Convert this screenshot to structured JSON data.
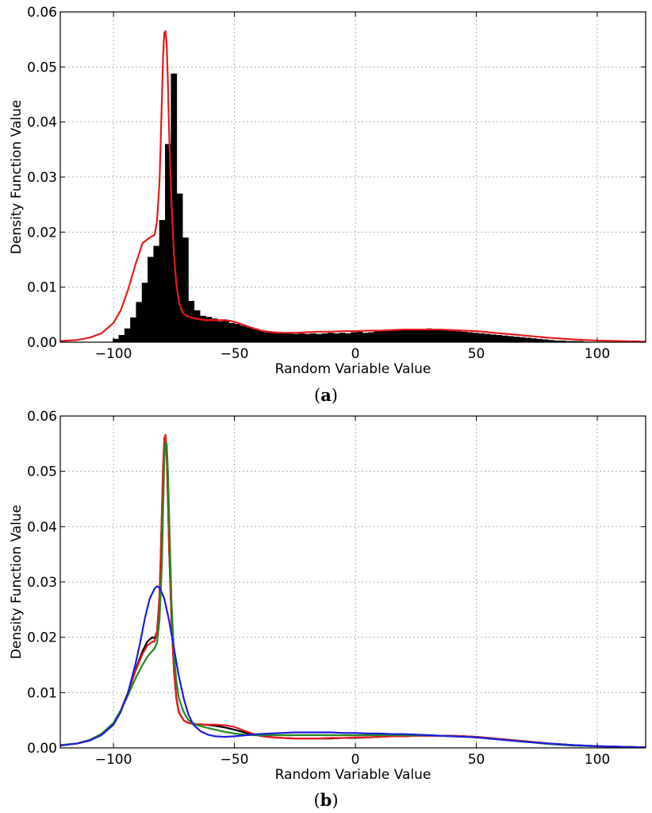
{
  "chart_data": [
    {
      "type": "bar",
      "panel_label": "a",
      "xlabel": "Random Variable Value",
      "ylabel": "Density Function Value",
      "xlim": [
        -122,
        120
      ],
      "ylim": [
        0,
        0.06
      ],
      "xticks": [
        -100,
        -50,
        0,
        50,
        100
      ],
      "xtick_labels": [
        "−100",
        "−50",
        "0",
        "50",
        "100"
      ],
      "yticks": [
        0,
        0.01,
        0.02,
        0.03,
        0.04,
        0.05,
        0.06
      ],
      "ytick_labels": [
        "0.00",
        "0.01",
        "0.02",
        "0.03",
        "0.04",
        "0.05",
        "0.06"
      ],
      "grid": true,
      "histogram": {
        "bin_width": 2.42,
        "color": "#000000",
        "bins": [
          [
            -100.3,
            0.0006
          ],
          [
            -97.9,
            0.0013
          ],
          [
            -95.5,
            0.0025
          ],
          [
            -93.1,
            0.0045
          ],
          [
            -90.7,
            0.0073
          ],
          [
            -88.3,
            0.0108
          ],
          [
            -85.9,
            0.0155
          ],
          [
            -83.5,
            0.0175
          ],
          [
            -81.1,
            0.0222
          ],
          [
            -78.7,
            0.036
          ],
          [
            -76.3,
            0.0488
          ],
          [
            -73.9,
            0.027
          ],
          [
            -71.5,
            0.019
          ],
          [
            -69.1,
            0.0075
          ],
          [
            -66.7,
            0.0058
          ],
          [
            -64.3,
            0.0048
          ],
          [
            -61.9,
            0.0046
          ],
          [
            -59.5,
            0.0043
          ],
          [
            -57.1,
            0.0038
          ],
          [
            -54.7,
            0.004
          ],
          [
            -52.3,
            0.0035
          ],
          [
            -49.9,
            0.0033
          ],
          [
            -47.5,
            0.003
          ],
          [
            -45.1,
            0.0027
          ],
          [
            -42.7,
            0.0025
          ],
          [
            -40.3,
            0.0022
          ],
          [
            -37.9,
            0.002
          ],
          [
            -35.5,
            0.0019
          ],
          [
            -33.1,
            0.0018
          ],
          [
            -30.7,
            0.0017
          ],
          [
            -28.3,
            0.0016
          ],
          [
            -25.9,
            0.0015
          ],
          [
            -23.5,
            0.0016
          ],
          [
            -21.1,
            0.0015
          ],
          [
            -18.7,
            0.0016
          ],
          [
            -16.3,
            0.0015
          ],
          [
            -13.9,
            0.0016
          ],
          [
            -11.5,
            0.0017
          ],
          [
            -9.1,
            0.0016
          ],
          [
            -6.7,
            0.0017
          ],
          [
            -4.3,
            0.0016
          ],
          [
            -1.9,
            0.0018
          ],
          [
            0.5,
            0.0019
          ],
          [
            2.9,
            0.0017
          ],
          [
            5.3,
            0.0018
          ],
          [
            7.7,
            0.002
          ],
          [
            10.1,
            0.0021
          ],
          [
            12.5,
            0.0022
          ],
          [
            14.9,
            0.0021
          ],
          [
            17.3,
            0.0023
          ],
          [
            19.7,
            0.0024
          ],
          [
            22.1,
            0.0023
          ],
          [
            24.5,
            0.0024
          ],
          [
            26.9,
            0.0023
          ],
          [
            29.3,
            0.0025
          ],
          [
            31.7,
            0.0024
          ],
          [
            34.1,
            0.0023
          ],
          [
            36.5,
            0.0022
          ],
          [
            38.9,
            0.0021
          ],
          [
            41.3,
            0.002
          ],
          [
            43.7,
            0.0019
          ],
          [
            46.1,
            0.0018
          ],
          [
            48.5,
            0.0017
          ],
          [
            50.9,
            0.0016
          ],
          [
            53.3,
            0.0015
          ],
          [
            55.7,
            0.0014
          ],
          [
            58.1,
            0.0013
          ],
          [
            60.5,
            0.0012
          ],
          [
            62.9,
            0.0011
          ],
          [
            65.3,
            0.001
          ],
          [
            67.7,
            0.0009
          ],
          [
            70.1,
            0.0008
          ],
          [
            72.5,
            0.0007
          ],
          [
            74.9,
            0.0006
          ],
          [
            77.3,
            0.0005
          ],
          [
            79.7,
            0.0004
          ],
          [
            82.1,
            0.0003
          ],
          [
            84.5,
            0.0003
          ],
          [
            86.9,
            0.0002
          ],
          [
            89.3,
            0.0002
          ],
          [
            91.7,
            0.0002
          ],
          [
            94.1,
            0.0001
          ]
        ]
      },
      "series": [
        {
          "color": "#e8191c",
          "x": [
            -122,
            -115,
            -110,
            -105,
            -100,
            -97,
            -94,
            -91,
            -88,
            -85,
            -83,
            -82,
            -81,
            -80.5,
            -80,
            -79.5,
            -79,
            -78.5,
            -78,
            -77.5,
            -77,
            -76,
            -75,
            -74,
            -73,
            -72,
            -71,
            -70,
            -68,
            -65,
            -62,
            -58,
            -54,
            -52,
            -50,
            -46,
            -42,
            -38,
            -34,
            -30,
            -25,
            -20,
            -15,
            -10,
            -5,
            0,
            5,
            10,
            15,
            20,
            25,
            30,
            35,
            40,
            45,
            50,
            55,
            60,
            70,
            80,
            90,
            100,
            110,
            120
          ],
          "y": [
            0.0002,
            0.0004,
            0.0008,
            0.0016,
            0.0035,
            0.0058,
            0.0095,
            0.014,
            0.018,
            0.019,
            0.0195,
            0.022,
            0.029,
            0.036,
            0.044,
            0.052,
            0.0562,
            0.0565,
            0.054,
            0.047,
            0.038,
            0.025,
            0.016,
            0.0105,
            0.0075,
            0.006,
            0.0052,
            0.0048,
            0.0045,
            0.0042,
            0.004,
            0.004,
            0.004,
            0.0039,
            0.0037,
            0.0031,
            0.0025,
            0.002,
            0.0018,
            0.0017,
            0.0017,
            0.0018,
            0.0019,
            0.0019,
            0.002,
            0.002,
            0.0021,
            0.0021,
            0.0022,
            0.0023,
            0.0023,
            0.0023,
            0.0023,
            0.0022,
            0.0021,
            0.002,
            0.0018,
            0.0016,
            0.0012,
            0.0008,
            0.0005,
            0.0003,
            0.0002,
            0.0001
          ]
        }
      ]
    },
    {
      "type": "line",
      "panel_label": "b",
      "xlabel": "Random Variable Value",
      "ylabel": "Density Function Value",
      "xlim": [
        -122,
        120
      ],
      "ylim": [
        0,
        0.06
      ],
      "xticks": [
        -100,
        -50,
        0,
        50,
        100
      ],
      "xtick_labels": [
        "−100",
        "−50",
        "0",
        "50",
        "100"
      ],
      "yticks": [
        0,
        0.01,
        0.02,
        0.03,
        0.04,
        0.05,
        0.06
      ],
      "ytick_labels": [
        "0.00",
        "0.01",
        "0.02",
        "0.03",
        "0.04",
        "0.05",
        "0.06"
      ],
      "grid": true,
      "series": [
        {
          "color": "#000000",
          "x": [
            -122,
            -115,
            -110,
            -105,
            -100,
            -97,
            -94,
            -91,
            -88,
            -86,
            -84,
            -83,
            -82,
            -81,
            -80.5,
            -80,
            -79.5,
            -79,
            -78.5,
            -78,
            -77.5,
            -77,
            -76,
            -75,
            -74,
            -73,
            -71,
            -69,
            -66,
            -62,
            -58,
            -54,
            -50,
            -46,
            -42,
            -38,
            -34,
            -30,
            -25,
            -20,
            -15,
            -10,
            -5,
            0,
            5,
            10,
            15,
            20,
            25,
            30,
            35,
            40,
            45,
            50,
            55,
            60,
            70,
            80,
            90,
            100,
            110,
            120
          ],
          "y": [
            0.0005,
            0.0008,
            0.0014,
            0.0025,
            0.0045,
            0.0068,
            0.01,
            0.014,
            0.0175,
            0.0192,
            0.02,
            0.0198,
            0.021,
            0.027,
            0.034,
            0.042,
            0.05,
            0.0552,
            0.056,
            0.053,
            0.045,
            0.036,
            0.023,
            0.014,
            0.009,
            0.0065,
            0.005,
            0.0045,
            0.0043,
            0.0042,
            0.004,
            0.0037,
            0.0033,
            0.0028,
            0.0024,
            0.0021,
            0.0019,
            0.0018,
            0.0017,
            0.0017,
            0.0017,
            0.0017,
            0.0018,
            0.0018,
            0.0019,
            0.002,
            0.0021,
            0.0021,
            0.0022,
            0.0022,
            0.0022,
            0.0022,
            0.0021,
            0.002,
            0.0018,
            0.0016,
            0.0012,
            0.0008,
            0.0005,
            0.0003,
            0.0002,
            0.0001
          ]
        },
        {
          "color": "#e8191c",
          "x": [
            -122,
            -115,
            -110,
            -105,
            -100,
            -97,
            -94,
            -91,
            -88,
            -86,
            -84,
            -83,
            -82,
            -81,
            -80.5,
            -80,
            -79.5,
            -79,
            -78.5,
            -78,
            -77.5,
            -77,
            -76,
            -75,
            -74,
            -73,
            -71,
            -69,
            -66,
            -62,
            -58,
            -54,
            -50,
            -46,
            -42,
            -38,
            -34,
            -30,
            -25,
            -20,
            -15,
            -10,
            -5,
            0,
            5,
            10,
            15,
            20,
            25,
            30,
            35,
            40,
            45,
            50,
            55,
            60,
            70,
            80,
            90,
            100,
            110,
            120
          ],
          "y": [
            0.0005,
            0.0008,
            0.0014,
            0.0025,
            0.0045,
            0.0068,
            0.01,
            0.0138,
            0.017,
            0.0185,
            0.0192,
            0.0192,
            0.021,
            0.0275,
            0.0345,
            0.043,
            0.051,
            0.056,
            0.0566,
            0.0535,
            0.0455,
            0.036,
            0.023,
            0.0138,
            0.0088,
            0.0064,
            0.005,
            0.0045,
            0.0043,
            0.0042,
            0.0042,
            0.0041,
            0.0038,
            0.0031,
            0.0025,
            0.0021,
            0.0019,
            0.0018,
            0.0017,
            0.0017,
            0.0017,
            0.0018,
            0.0018,
            0.0019,
            0.0019,
            0.002,
            0.0021,
            0.0021,
            0.0022,
            0.0022,
            0.0022,
            0.0022,
            0.0021,
            0.002,
            0.0018,
            0.0016,
            0.0012,
            0.0008,
            0.0005,
            0.0003,
            0.0002,
            0.0001
          ]
        },
        {
          "color": "#1f8a1f",
          "x": [
            -122,
            -115,
            -110,
            -105,
            -100,
            -97,
            -94,
            -91,
            -88,
            -86,
            -84,
            -83,
            -82,
            -81,
            -80,
            -79.5,
            -79,
            -78.5,
            -78,
            -77.5,
            -77,
            -76.5,
            -76,
            -75,
            -74,
            -73,
            -71,
            -69,
            -66,
            -62,
            -58,
            -54,
            -50,
            -46,
            -42,
            -38,
            -34,
            -30,
            -25,
            -20,
            -15,
            -10,
            -5,
            0,
            5,
            10,
            15,
            20,
            25,
            30,
            35,
            40,
            45,
            50,
            55,
            60,
            70,
            80,
            90,
            100,
            110,
            120
          ],
          "y": [
            0.0005,
            0.0008,
            0.0014,
            0.0025,
            0.0045,
            0.0068,
            0.0095,
            0.0125,
            0.015,
            0.0165,
            0.0175,
            0.018,
            0.019,
            0.023,
            0.033,
            0.043,
            0.052,
            0.0553,
            0.055,
            0.05,
            0.042,
            0.034,
            0.026,
            0.017,
            0.012,
            0.009,
            0.0065,
            0.005,
            0.0042,
            0.0037,
            0.0033,
            0.0029,
            0.0026,
            0.0024,
            0.0023,
            0.0023,
            0.0023,
            0.0023,
            0.0023,
            0.0023,
            0.0023,
            0.0023,
            0.0023,
            0.0023,
            0.0023,
            0.0023,
            0.0023,
            0.0023,
            0.0023,
            0.0023,
            0.0022,
            0.0021,
            0.002,
            0.0019,
            0.0017,
            0.0015,
            0.0011,
            0.0007,
            0.0004,
            0.0003,
            0.0002,
            0.0001
          ]
        },
        {
          "color": "#1c1ce0",
          "x": [
            -122,
            -115,
            -110,
            -105,
            -100,
            -97,
            -94,
            -91,
            -89,
            -87,
            -85,
            -83,
            -82,
            -81,
            -79,
            -77,
            -75,
            -73,
            -71,
            -69,
            -67,
            -64,
            -61,
            -58,
            -54,
            -50,
            -45,
            -40,
            -35,
            -30,
            -25,
            -20,
            -15,
            -10,
            -5,
            0,
            5,
            10,
            15,
            20,
            25,
            30,
            35,
            40,
            45,
            50,
            55,
            60,
            70,
            80,
            90,
            100,
            110,
            120
          ],
          "y": [
            0.0004,
            0.0008,
            0.0013,
            0.0023,
            0.0042,
            0.0065,
            0.01,
            0.015,
            0.019,
            0.0235,
            0.027,
            0.0288,
            0.0292,
            0.029,
            0.027,
            0.023,
            0.018,
            0.013,
            0.009,
            0.006,
            0.0042,
            0.003,
            0.0024,
            0.0021,
            0.002,
            0.0021,
            0.0023,
            0.0025,
            0.0026,
            0.0027,
            0.0028,
            0.0028,
            0.0028,
            0.0028,
            0.0027,
            0.0027,
            0.0026,
            0.0026,
            0.0025,
            0.0025,
            0.0024,
            0.0023,
            0.0022,
            0.0021,
            0.002,
            0.0019,
            0.0017,
            0.0015,
            0.0011,
            0.0008,
            0.0005,
            0.0003,
            0.0002,
            0.0001
          ]
        }
      ]
    }
  ]
}
